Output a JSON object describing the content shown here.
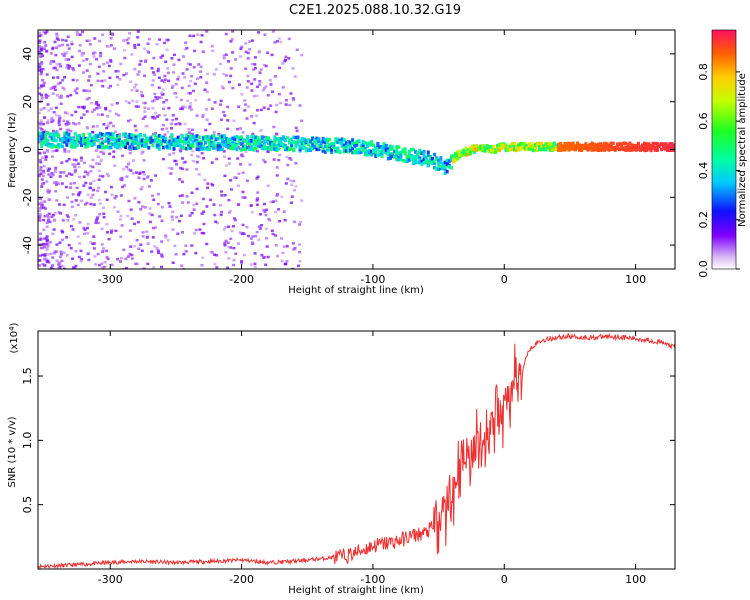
{
  "title": "C2E1.2025.088.10.32.G19",
  "chart_data": [
    {
      "type": "heatmap",
      "xlabel": "Height of straight line (km)",
      "ylabel": "Frequency (Hz)",
      "xlim": [
        -355,
        130
      ],
      "ylim": [
        -50,
        50
      ],
      "xticks": [
        -300,
        -200,
        -100,
        0,
        100
      ],
      "yticks": [
        -40,
        -20,
        0,
        20,
        40
      ],
      "colorbar": {
        "label": "Normalized spectral amplitude",
        "range": [
          0,
          0.97
        ],
        "ticks": [
          0.0,
          0.2,
          0.4,
          0.6,
          0.8
        ]
      },
      "ridge": {
        "x": [
          -355,
          -300,
          -250,
          -200,
          -150,
          -120,
          -100,
          -80,
          -60,
          -50,
          -45,
          -40,
          -35,
          -30,
          -20,
          -10,
          0,
          20,
          50,
          100,
          130
        ],
        "y": [
          4,
          3.5,
          3,
          2.5,
          2,
          1.5,
          0,
          -2,
          -4,
          -6,
          -8,
          -4,
          -2,
          -1,
          1,
          0,
          1,
          1,
          1,
          1,
          1
        ]
      }
    },
    {
      "type": "line",
      "xlabel": "Height of straight line (km)",
      "ylabel": "SNR (10 * v/v)",
      "yscale_note": "(x10",
      "yscale_exp": "4",
      "xlim": [
        -355,
        130
      ],
      "ylim": [
        0,
        1.85
      ],
      "xticks": [
        -300,
        -200,
        -100,
        0,
        100
      ],
      "yticks": [
        0.5,
        1.0,
        1.5
      ],
      "color": "#ee3030",
      "series": [
        {
          "x": [
            -355,
            -330,
            -300,
            -280,
            -250,
            -220,
            -200,
            -180,
            -160,
            -140,
            -120,
            -110,
            -100,
            -90,
            -80,
            -70,
            -60,
            -50,
            -45,
            -40,
            -35,
            -30,
            -25,
            -20,
            -15,
            -10,
            -5,
            0,
            5,
            10,
            15,
            20,
            25,
            30,
            40,
            50,
            60,
            70,
            80,
            90,
            100,
            110,
            120,
            130
          ],
          "y": [
            0.02,
            0.03,
            0.05,
            0.06,
            0.05,
            0.06,
            0.07,
            0.05,
            0.06,
            0.08,
            0.1,
            0.14,
            0.18,
            0.2,
            0.22,
            0.26,
            0.28,
            0.36,
            0.5,
            0.55,
            0.75,
            0.95,
            0.85,
            1.05,
            1.0,
            1.12,
            1.15,
            1.25,
            1.35,
            1.45,
            1.6,
            1.72,
            1.76,
            1.78,
            1.8,
            1.81,
            1.8,
            1.8,
            1.81,
            1.8,
            1.79,
            1.78,
            1.76,
            1.72
          ]
        }
      ]
    }
  ]
}
